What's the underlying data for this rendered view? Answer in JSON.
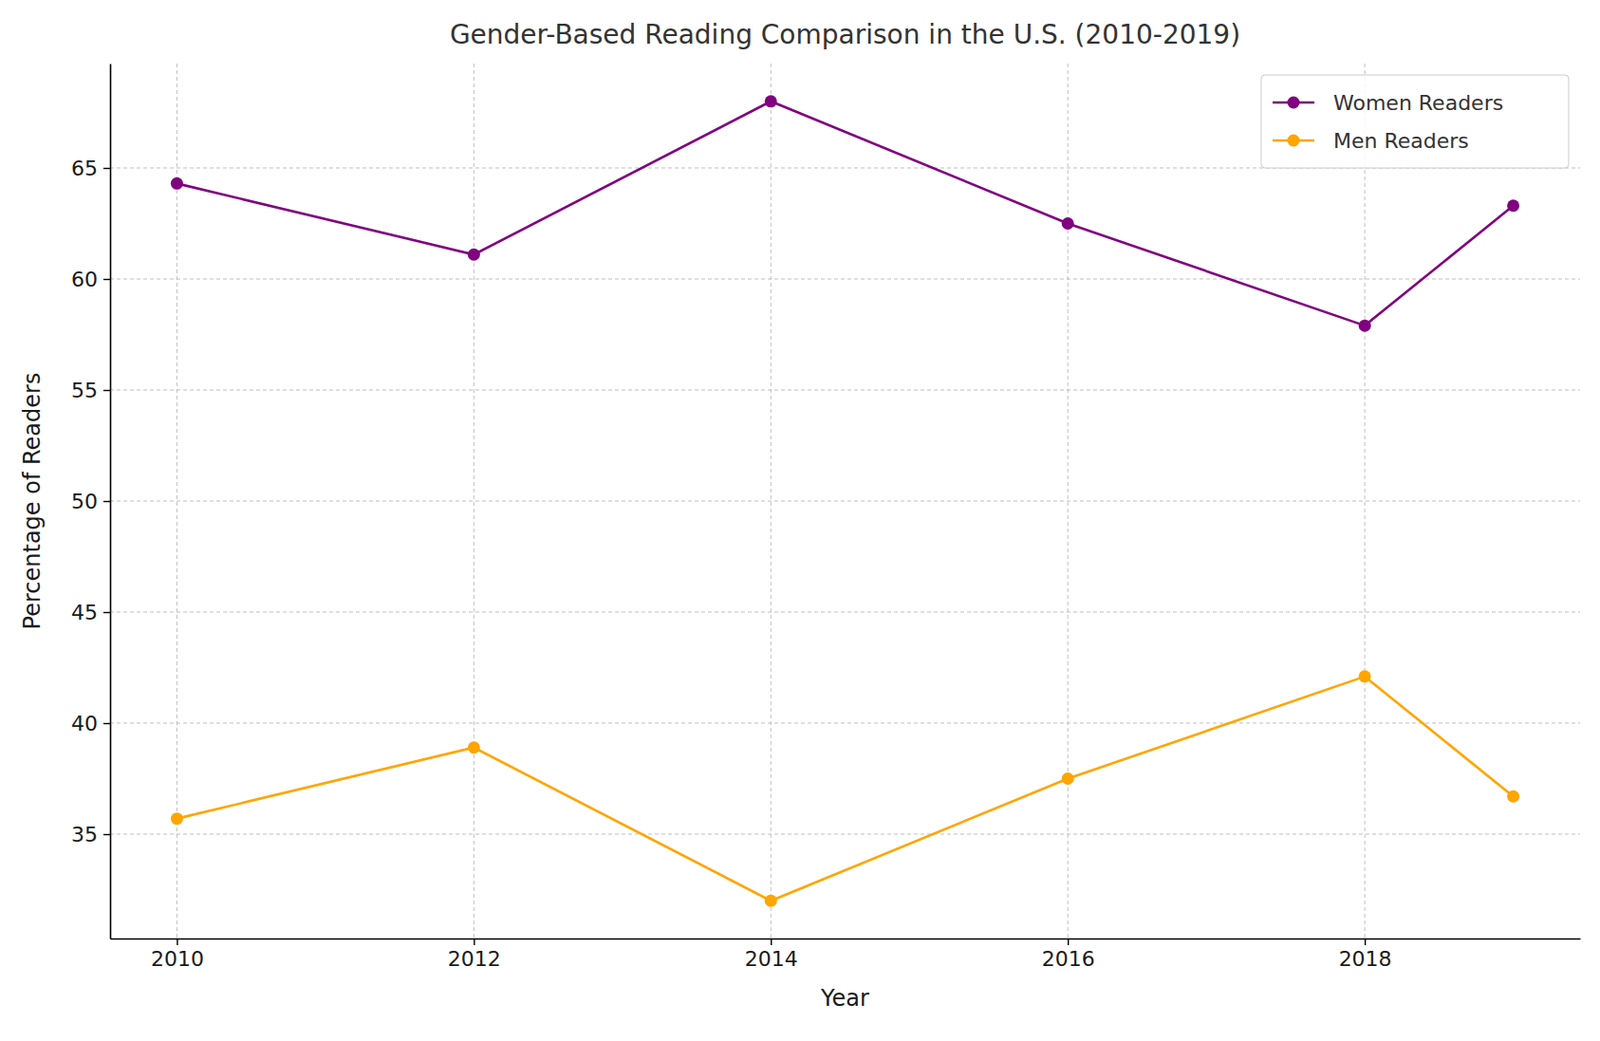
{
  "chart_data": {
    "type": "line",
    "title": "Gender-Based Reading Comparison in the U.S. (2010-2019)",
    "x_label": "Year",
    "y_label": "Percentage of Readers",
    "x": [
      2010,
      2012,
      2014,
      2016,
      2018,
      2019
    ],
    "series": [
      {
        "name": "Women Readers",
        "color": "#800080",
        "marker": "o",
        "line_style": "solid",
        "values": [
          64.3,
          61.1,
          68.0,
          62.5,
          57.9,
          63.3
        ]
      },
      {
        "name": "Men Readers",
        "color": "#FFA500",
        "marker": "o",
        "line_style": "solid",
        "values": [
          35.7,
          38.9,
          32.0,
          37.5,
          42.1,
          36.7
        ]
      }
    ],
    "xlim": [
      2009.55,
      2019.45
    ],
    "xticks": [
      2010,
      2012,
      2014,
      2016,
      2018
    ],
    "ylim": [
      30.3,
      69.7
    ],
    "yticks": [
      35,
      40,
      45,
      50,
      55,
      60,
      65
    ],
    "grid": true,
    "legend": "upper right"
  }
}
